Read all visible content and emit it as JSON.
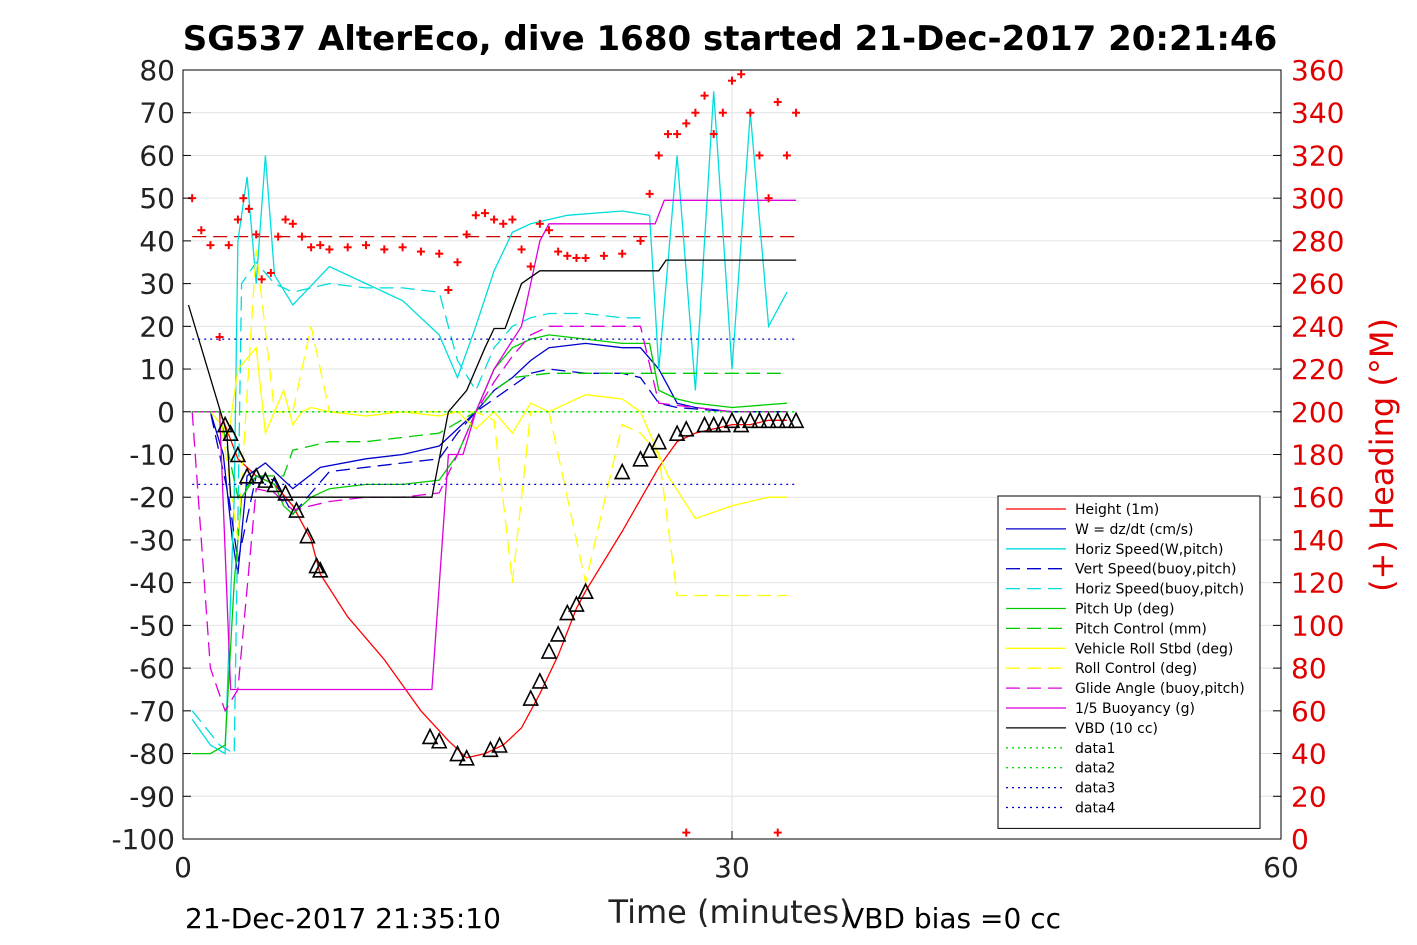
{
  "chart_data": {
    "type": "line",
    "title": "SG537 AlterEco, dive 1680 started 21-Dec-2017 20:21:46",
    "xlabel": "Time (minutes)",
    "ylabel": "",
    "ylabel_right": "(+) Heading (°M)",
    "xlim": [
      0,
      60
    ],
    "ylim": [
      -100,
      80
    ],
    "ylim_right": [
      0,
      360
    ],
    "x_ticks": [
      "0",
      "30",
      "60"
    ],
    "y_ticks": [
      "80",
      "70",
      "60",
      "50",
      "40",
      "30",
      "20",
      "10",
      "0",
      "-10",
      "-20",
      "-30",
      "-40",
      "-50",
      "-60",
      "-70",
      "-80",
      "-90",
      "-100"
    ],
    "y_ticks_right": [
      "360",
      "340",
      "320",
      "300",
      "280",
      "260",
      "240",
      "220",
      "200",
      "180",
      "160",
      "140",
      "120",
      "100",
      "80",
      "60",
      "40",
      "20",
      "0"
    ],
    "grid": true,
    "legend_position": "bottom-right",
    "footer_left": "21-Dec-2017 21:35:10",
    "footer_right": "VBD bias =0 cc",
    "series": [
      {
        "name": "Height (1m)",
        "color": "#ff0000",
        "style": "solid",
        "x": [
          2.2,
          3.0,
          4.0,
          5.0,
          6.0,
          7.0,
          7.5,
          9.0,
          11.0,
          12.0,
          13.0,
          14.5,
          15.5,
          16.5,
          17.5,
          18.5,
          19.5,
          20.5,
          21.5,
          22.0,
          24.0,
          26.0,
          27.0,
          28.0,
          29.0,
          30.0,
          31.0,
          32.0,
          33.0
        ],
        "values": [
          -2,
          -11,
          -15,
          -17,
          -22,
          -30,
          -38,
          -48,
          -58,
          -64,
          -70,
          -77,
          -81,
          -80,
          -78,
          -74,
          -66,
          -57,
          -46,
          -42,
          -28,
          -13,
          -7,
          -5,
          -4,
          -3,
          -3,
          -2,
          -2
        ]
      },
      {
        "name": "W = dz/dt (cm/s)",
        "color": "#0000cc",
        "style": "solid",
        "x": [
          0.5,
          1.5,
          2.2,
          2.7,
          3.0,
          3.5,
          4.5,
          6.0,
          7.5,
          10.0,
          12.0,
          14.0,
          15.0,
          16.0,
          17.0,
          18.0,
          19.0,
          20.0,
          22.0,
          24.0,
          25.0,
          26.0,
          26.5,
          27.0,
          28.0,
          30.0,
          33.0
        ],
        "values": [
          0,
          0,
          -10,
          -30,
          -38,
          -15,
          -12,
          -18,
          -13,
          -11,
          -10,
          -8,
          -4,
          0,
          5,
          8,
          12,
          15,
          16,
          15,
          15,
          10,
          6,
          2,
          1,
          0,
          0
        ]
      },
      {
        "name": "Horiz Speed(W,pitch)",
        "color": "#00dddd",
        "style": "solid",
        "x": [
          0.5,
          1.5,
          2.3,
          2.8,
          3.0,
          3.5,
          4.0,
          4.5,
          5.0,
          6.0,
          8.0,
          10.0,
          12.0,
          14.0,
          14.5,
          15.0,
          16.0,
          17.0,
          18.0,
          19.0,
          21.0,
          24.0,
          25.5,
          26.0,
          27.0,
          28.0,
          29.0,
          30.0,
          31.0,
          32.0,
          33.0
        ],
        "values": [
          -72,
          -78,
          -80,
          -20,
          40,
          55,
          30,
          60,
          32,
          25,
          34,
          30,
          26,
          18,
          13,
          8,
          20,
          33,
          42,
          44,
          46,
          47,
          46,
          10,
          60,
          5,
          75,
          10,
          70,
          20,
          28
        ]
      },
      {
        "name": "Vert Speed(buoy,pitch)",
        "color": "#0000cc",
        "style": "dashed",
        "x": [
          0.5,
          1.5,
          2.5,
          3.0,
          4.0,
          5.0,
          6.0,
          8.0,
          10.0,
          12.0,
          14.0,
          15.0,
          16.0,
          17.0,
          18.0,
          19.0,
          20.0,
          22.0,
          24.0,
          25.0,
          26.0,
          27.0,
          30.0,
          33.0
        ],
        "values": [
          0,
          0,
          -20,
          -35,
          -15,
          -16,
          -24,
          -14,
          -13,
          -12,
          -11,
          -5,
          0,
          3,
          6,
          9,
          10,
          9,
          9,
          8,
          2,
          1,
          0,
          0
        ]
      },
      {
        "name": "Horiz Speed(buoy,pitch)",
        "color": "#00dddd",
        "style": "dashed",
        "x": [
          0.5,
          2.0,
          2.8,
          3.2,
          4.0,
          5.0,
          6.0,
          8.0,
          10.0,
          12.0,
          14.0,
          15.0,
          16.0,
          17.0,
          18.0,
          19.0,
          20.0,
          22.0,
          24.0,
          25.0
        ],
        "values": [
          -70,
          -78,
          -80,
          30,
          35,
          30,
          28,
          30,
          29,
          29,
          28,
          12,
          5,
          15,
          20,
          22,
          23,
          23,
          22,
          22
        ]
      },
      {
        "name": "Pitch Up (deg)",
        "color": "#00cc00",
        "style": "solid",
        "x": [
          0.5,
          1.5,
          2.3,
          2.8,
          3.2,
          4.0,
          5.0,
          5.5,
          6.0,
          7.0,
          8.0,
          10.0,
          12.0,
          14.0,
          15.0,
          16.0,
          17.0,
          18.0,
          19.0,
          20.0,
          22.0,
          24.0,
          25.5,
          26.0,
          27.0,
          28.0,
          30.0,
          33.0
        ],
        "values": [
          -80,
          -80,
          -78,
          -40,
          -20,
          -15,
          -17,
          -22,
          -24,
          -20,
          -18,
          -17,
          -17,
          -16,
          -10,
          0,
          10,
          15,
          17,
          18,
          17,
          16,
          16,
          5,
          3,
          2,
          1,
          2
        ]
      },
      {
        "name": "Pitch Control (mm)",
        "color": "#00cc00",
        "style": "dashed",
        "x": [
          0.5,
          2.0,
          3.0,
          4.0,
          5.5,
          6.0,
          8.0,
          10.0,
          14.0,
          16.0,
          17.0,
          18.0,
          20.0,
          24.0,
          25.0,
          26.0,
          33.0
        ],
        "values": [
          0,
          0,
          -20,
          -15,
          -15,
          -9,
          -7,
          -7,
          -5,
          0,
          5,
          8,
          9,
          9,
          9,
          9,
          9
        ]
      },
      {
        "name": "Vehicle Roll Stbd (deg)",
        "color": "#ffff00",
        "style": "solid",
        "x": [
          0.5,
          1.5,
          2.5,
          3.0,
          4.0,
          4.5,
          5.0,
          5.5,
          6.0,
          6.5,
          7.0,
          8.0,
          10.0,
          12.0,
          14.0,
          15.0,
          16.0,
          17.0,
          18.0,
          19.0,
          20.0,
          22.0,
          24.0,
          25.0,
          25.5,
          26.5,
          28.0,
          30.0,
          32.0,
          33.0
        ],
        "values": [
          0,
          0,
          -5,
          10,
          15,
          -5,
          0,
          5,
          -3,
          0,
          1,
          0,
          -1,
          0,
          -1,
          0,
          -4,
          0,
          -5,
          2,
          0,
          4,
          3,
          0,
          -5,
          -15,
          -25,
          -22,
          -20,
          -20
        ]
      },
      {
        "name": "Roll Control (deg)",
        "color": "#ffff00",
        "style": "dashed",
        "x": [
          0.5,
          2.0,
          3.0,
          4.0,
          5.0,
          6.0,
          7.0,
          8.0,
          10.0,
          14.0,
          16.0,
          17.0,
          18.0,
          19.0,
          20.0,
          22.0,
          24.0,
          25.0,
          26.0,
          27.0,
          28.0,
          30.0,
          33.0
        ],
        "values": [
          0,
          0,
          -30,
          38,
          0,
          0,
          20,
          0,
          0,
          0,
          0,
          -2,
          -40,
          0,
          0,
          -40,
          -3,
          -5,
          -10,
          -43,
          -43,
          -43,
          -43
        ]
      },
      {
        "name": "Glide Angle (buoy,pitch)",
        "color": "#dd00dd",
        "style": "dashed",
        "x": [
          0.5,
          1.5,
          2.3,
          3.0,
          4.0,
          5.0,
          6.0,
          8.0,
          10.0,
          12.0,
          14.0,
          15.0,
          16.0,
          17.0,
          18.0,
          19.0,
          20.0,
          22.0,
          24.0,
          25.0,
          26.0,
          28.0,
          30.0,
          33.0
        ],
        "values": [
          0,
          -60,
          -70,
          -65,
          -18,
          -19,
          -23,
          -21,
          -20,
          -20,
          -19,
          -10,
          0,
          7,
          13,
          18,
          20,
          20,
          20,
          20,
          2,
          1,
          0,
          0
        ]
      },
      {
        "name": "1/5 Buoyancy (g)",
        "color": "#dd00dd",
        "style": "solid",
        "x": [
          0.5,
          2.0,
          2.6,
          4.0,
          10.0,
          13.6,
          14.5,
          15.3,
          16.0,
          17.0,
          18.5,
          19.5,
          20.0,
          24.0,
          25.8,
          26.3,
          33.5
        ],
        "values": [
          0,
          0,
          -65,
          -65,
          -65,
          -65,
          -10,
          -10,
          0,
          10,
          20,
          40,
          44,
          44,
          44,
          49.5,
          49.5
        ]
      },
      {
        "name": "VBD (10 cc)",
        "color": "#000000",
        "style": "solid",
        "x": [
          0.3,
          2.4,
          2.6,
          4.0,
          10.0,
          13.6,
          14.5,
          15.5,
          16.5,
          17.0,
          17.6,
          18.5,
          19.5,
          24.0,
          26.0,
          26.4,
          33.5
        ],
        "values": [
          25,
          -5,
          -20,
          -20,
          -20,
          -20,
          0,
          5,
          15,
          19.5,
          19.5,
          30,
          33,
          33,
          33,
          35.5,
          35.5
        ]
      },
      {
        "name": "data1",
        "color": "#00dd00",
        "style": "dotted",
        "x": [
          0.5,
          33.5
        ],
        "values": [
          0,
          0
        ]
      },
      {
        "name": "data2",
        "color": "#00dd00",
        "style": "dotted",
        "x": [
          0.5,
          33.5
        ],
        "values": [
          0,
          0
        ]
      },
      {
        "name": "data3",
        "color": "#0000cc",
        "style": "dotted",
        "x": [
          0.5,
          33.5
        ],
        "values": [
          17,
          17
        ]
      },
      {
        "name": "data4",
        "color": "#0000cc",
        "style": "dotted",
        "x": [
          0.5,
          33.5
        ],
        "values": [
          -17,
          -17
        ]
      }
    ],
    "extra_lines": [
      {
        "color": "#cc0000",
        "style": "dashed",
        "x": [
          0.5,
          33.5
        ],
        "values": [
          41,
          41
        ]
      }
    ],
    "heading_points": {
      "color": "#ff0000",
      "axis": "right",
      "x": [
        0.5,
        1.0,
        1.5,
        2.0,
        2.5,
        3.0,
        3.3,
        3.6,
        4.0,
        4.3,
        4.8,
        5.2,
        5.6,
        6.0,
        6.5,
        7.0,
        7.5,
        8.0,
        9.0,
        10.0,
        11.0,
        12.0,
        13.0,
        14.0,
        14.5,
        15.0,
        15.5,
        16.0,
        16.5,
        17.0,
        17.5,
        18.0,
        18.5,
        19.0,
        19.5,
        20.0,
        20.5,
        21.0,
        21.5,
        22.0,
        23.0,
        24.0,
        25.0,
        25.5,
        26.0,
        26.5,
        27.0,
        27.5,
        28.0,
        28.5,
        29.0,
        29.5,
        30.0,
        30.5,
        31.0,
        31.5,
        32.0,
        32.5,
        33.0,
        33.5
      ],
      "values": [
        300,
        285,
        278,
        235,
        278,
        290,
        300,
        295,
        283,
        262,
        265,
        282,
        290,
        288,
        282,
        277,
        278,
        276,
        277,
        278,
        276,
        277,
        275,
        274,
        257,
        270,
        283,
        292,
        293,
        290,
        288,
        290,
        276,
        268,
        288,
        285,
        275,
        273,
        272,
        272,
        273,
        274,
        280,
        302,
        320,
        330,
        330,
        335,
        340,
        348,
        330,
        340,
        355,
        358,
        340,
        320,
        300,
        345,
        320,
        340
      ]
    },
    "heading_outliers": {
      "color": "#ff0000",
      "x": [
        27.5,
        32.5
      ],
      "values": [
        3,
        3
      ]
    },
    "markers": {
      "color": "#000000",
      "x": [
        2.3,
        2.6,
        3.0,
        3.5,
        4.0,
        4.5,
        5.0,
        5.6,
        6.2,
        6.8,
        7.3,
        7.5,
        13.5,
        14.0,
        15.0,
        15.5,
        16.8,
        17.3,
        19.0,
        19.5,
        20.0,
        20.5,
        21.0,
        21.5,
        22.0,
        24.0,
        25.0,
        25.5,
        26.0,
        27.0,
        27.5,
        28.5,
        29.0,
        29.5,
        30.0,
        30.5,
        31.0,
        31.5,
        32.0,
        32.5,
        33.0,
        33.5
      ],
      "values": [
        -3,
        -5,
        -10,
        -15,
        -15,
        -16,
        -17,
        -19,
        -23,
        -29,
        -36,
        -37,
        -76,
        -77,
        -80,
        -81,
        -79,
        -78,
        -67,
        -63,
        -56,
        -52,
        -47,
        -45,
        -42,
        -14,
        -11,
        -9,
        -7,
        -5,
        -4,
        -3,
        -3,
        -3,
        -2,
        -3,
        -2,
        -2,
        -2,
        -2,
        -2,
        -2
      ]
    }
  }
}
